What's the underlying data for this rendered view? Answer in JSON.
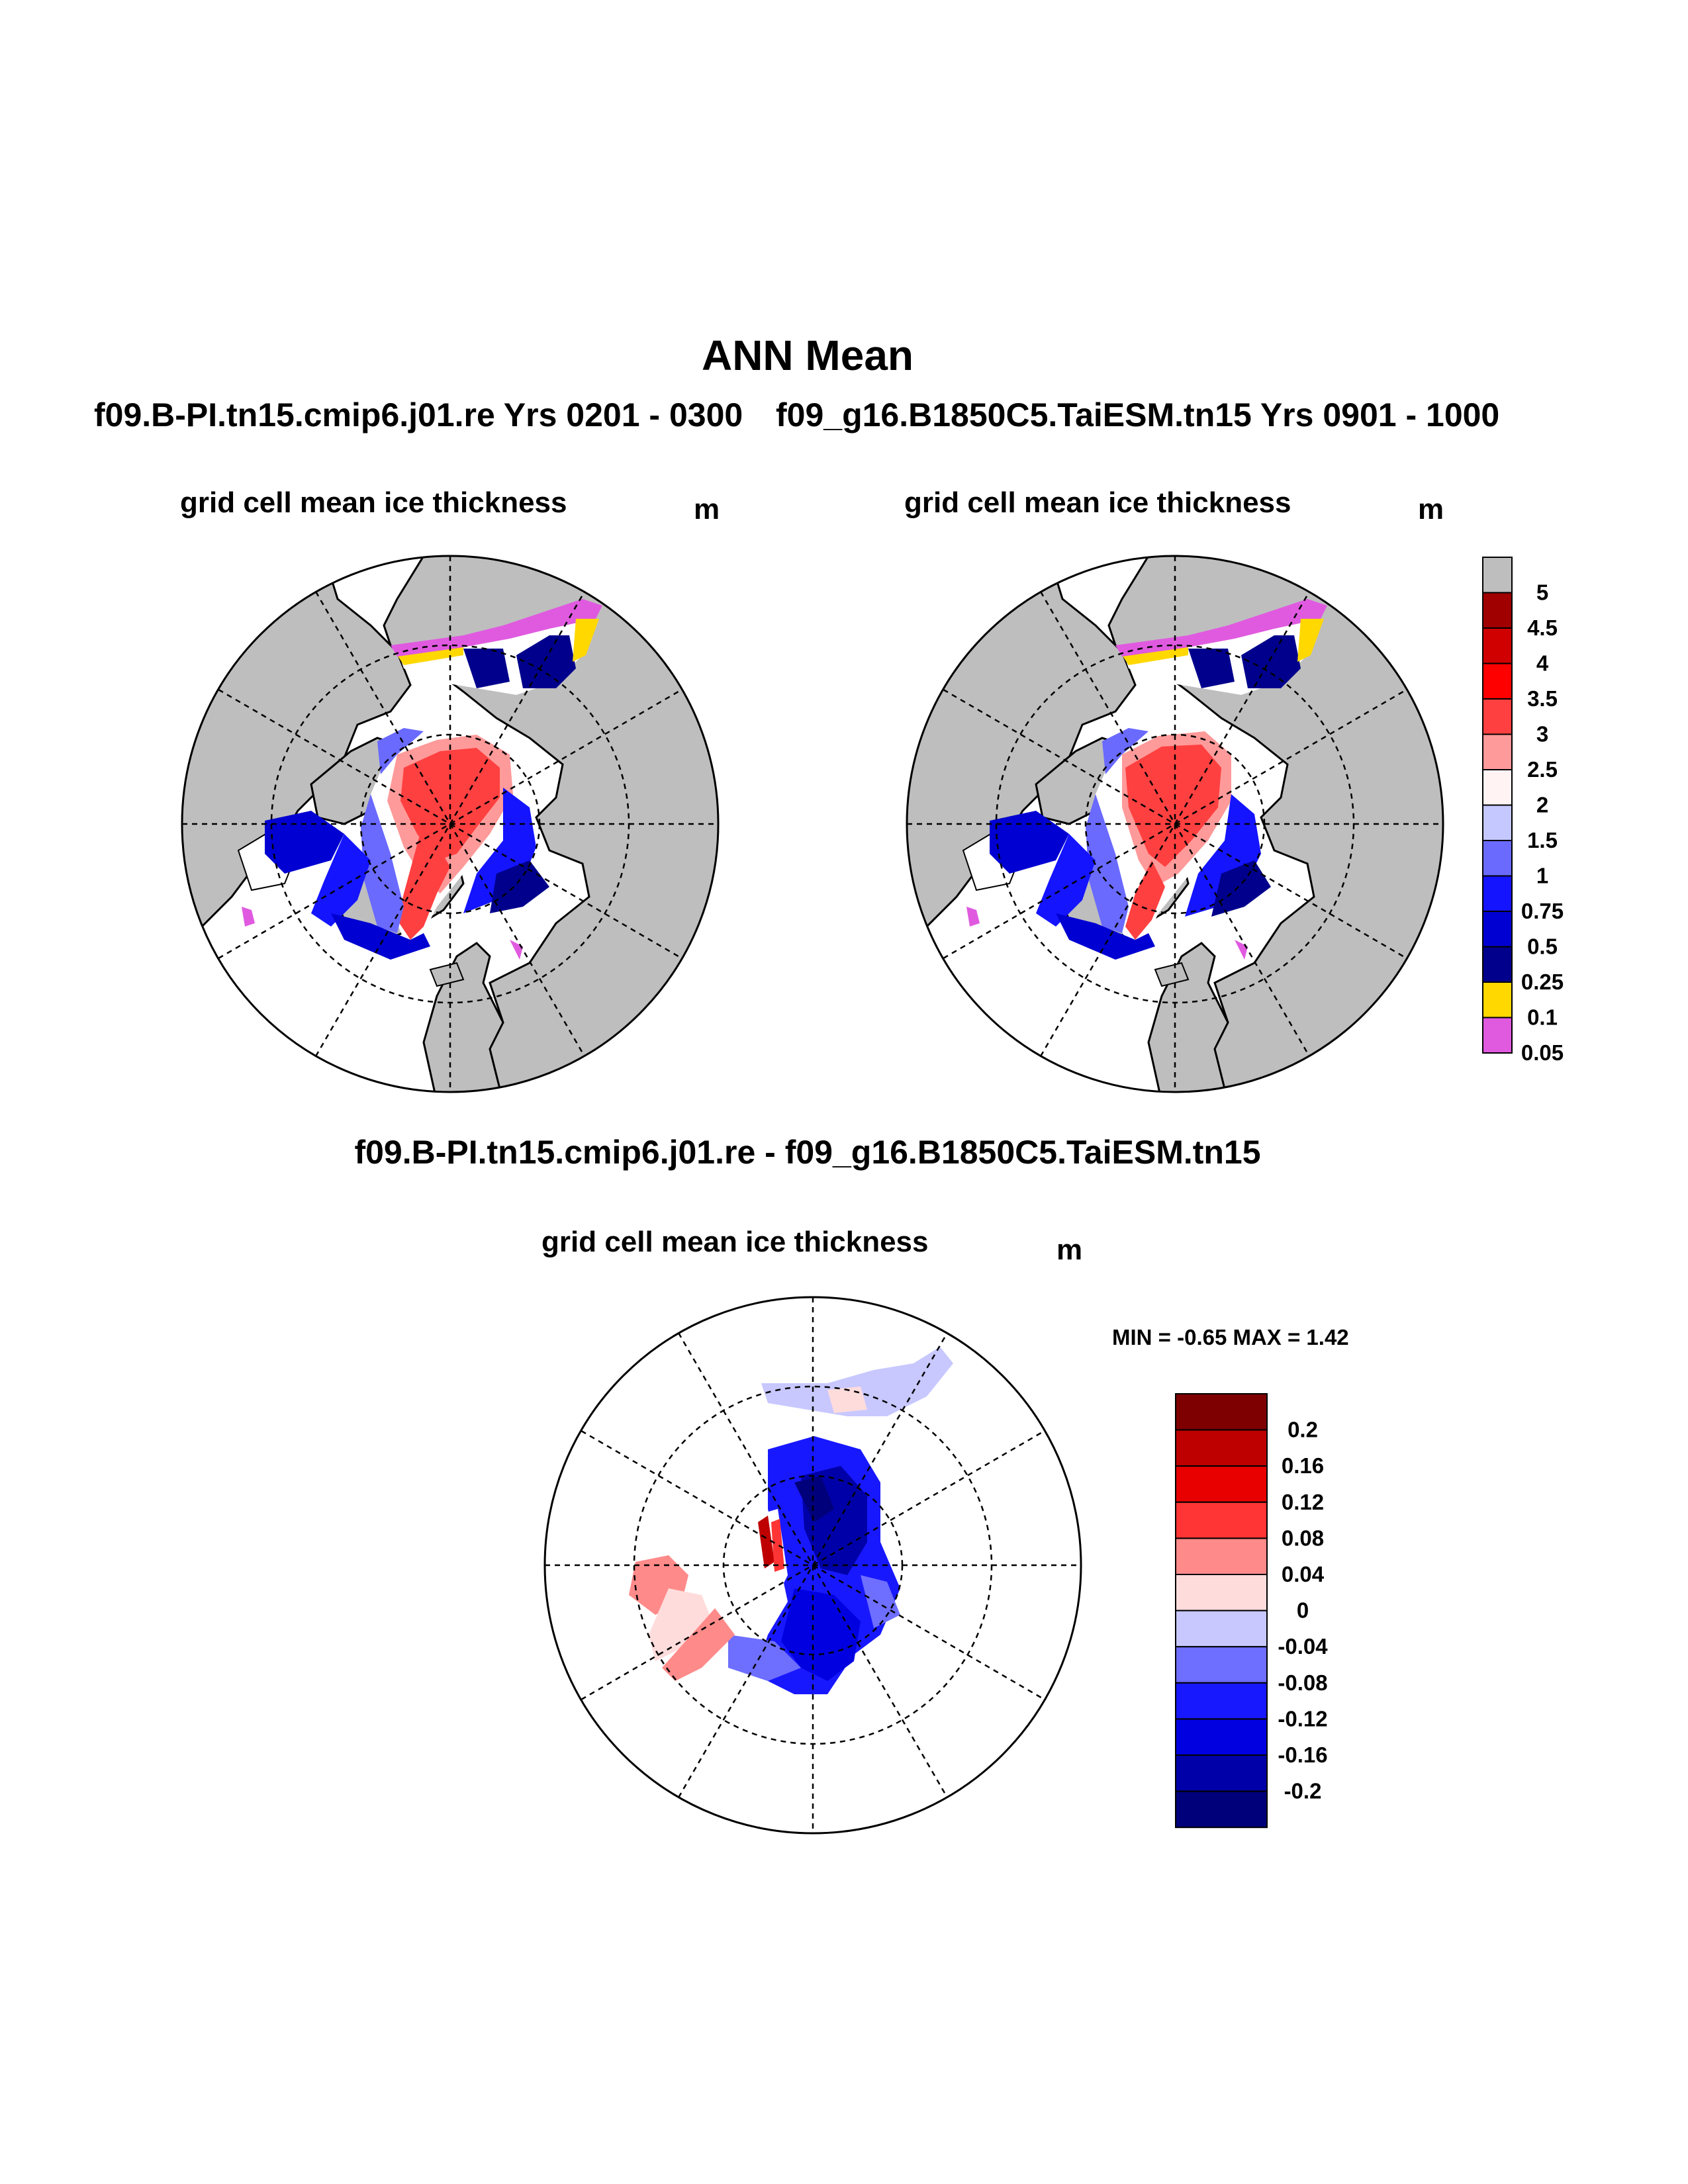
{
  "header": {
    "title": "ANN Mean",
    "case1": "f09.B-PI.tn15.cmip6.j01.re  Yrs 0201 - 0300",
    "case2": "f09_g16.B1850C5.TaiESM.tn15  Yrs 0901 - 1000",
    "diff_title": "f09.B-PI.tn15.cmip6.j01.re - f09_g16.B1850C5.TaiESM.tn15"
  },
  "panels": {
    "case1": {
      "title": "grid cell mean ice thickness",
      "units": "m"
    },
    "case2": {
      "title": "grid cell mean ice thickness",
      "units": "m"
    },
    "diff": {
      "title": "grid cell mean ice thickness",
      "units": "m",
      "minmax": "MIN =  -0.65 MAX =   1.42"
    }
  },
  "colorbar_main": {
    "labels": [
      "5",
      "4.5",
      "4",
      "3.5",
      "3",
      "2.5",
      "2",
      "1.5",
      "1",
      "0.75",
      "0.5",
      "0.25",
      "0.1",
      "0.05"
    ],
    "colors": [
      "#bebebe",
      "#a00000",
      "#d00000",
      "#ff0000",
      "#ff4040",
      "#ff9a9a",
      "#fff3f3",
      "#c4c8ff",
      "#6a6aff",
      "#1414ff",
      "#0000d2",
      "#00008c",
      "#ffd800",
      "#e05ae0"
    ]
  },
  "colorbar_diff": {
    "labels": [
      "0.2",
      "0.16",
      "0.12",
      "0.08",
      "0.04",
      "0",
      "-0.04",
      "-0.08",
      "-0.12",
      "-0.16",
      "-0.2"
    ],
    "colors": [
      "#7f0000",
      "#bf0000",
      "#e80000",
      "#ff3434",
      "#ff8a8a",
      "#ffdcdc",
      "#c8c8ff",
      "#6e6eff",
      "#1818ff",
      "#0000e0",
      "#0000a8",
      "#00007a"
    ]
  },
  "colors": {
    "land": "#bebebe",
    "ocean": "#ffffff",
    "coast": "#000000"
  }
}
